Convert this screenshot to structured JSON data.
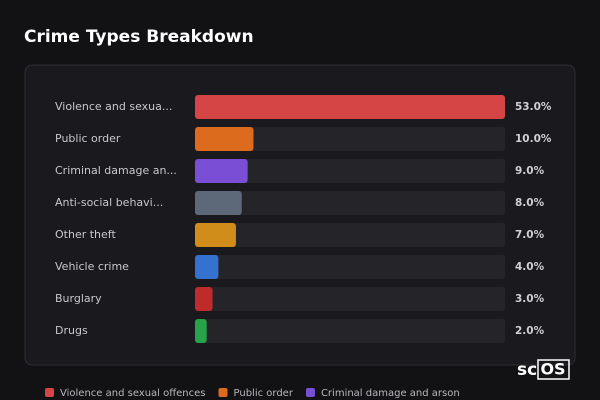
{
  "chart_data": {
    "type": "bar",
    "title": "Crime Types Breakdown",
    "categories": [
      "Violence and sexua...",
      "Public order",
      "Criminal damage an...",
      "Anti-social behavi...",
      "Other theft",
      "Vehicle crime",
      "Burglary",
      "Drugs"
    ],
    "values": [
      53,
      10,
      9,
      8,
      7,
      4,
      3,
      2
    ],
    "value_labels": [
      "53.0%",
      "10.0%",
      "9.0%",
      "8.0%",
      "7.0%",
      "4.0%",
      "3.0%",
      "2.0%"
    ],
    "colors": [
      "#d64545",
      "#dd6b1e",
      "#7a4fd6",
      "#5d6879",
      "#d08d1a",
      "#3571cf",
      "#bf2a2a",
      "#27a24b"
    ],
    "legend": [
      {
        "name": "Violence and sexual offences",
        "color": "#d64545"
      },
      {
        "name": "Public order",
        "color": "#dd6b1e"
      },
      {
        "name": "Criminal damage and arson",
        "color": "#7a4fd6"
      }
    ]
  },
  "watermark": {
    "left": "sc",
    "right": "OS"
  }
}
